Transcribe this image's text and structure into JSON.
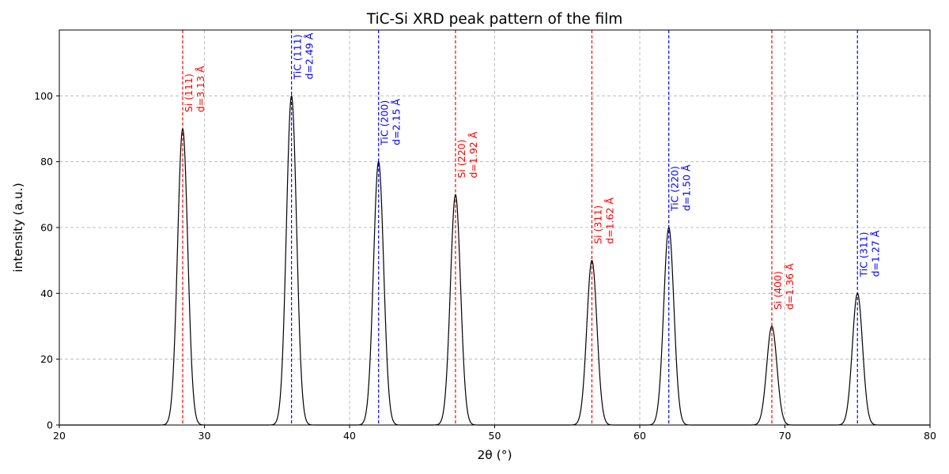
{
  "chart_data": {
    "type": "line",
    "title": "TiC-Si XRD peak pattern of the film",
    "xlabel": "2θ (°)",
    "ylabel": "intensity (a.u.)",
    "xlim": [
      20,
      80
    ],
    "ylim": [
      0,
      120
    ],
    "xticks": [
      20,
      30,
      40,
      50,
      60,
      70,
      80
    ],
    "yticks": [
      0,
      20,
      40,
      60,
      80,
      100
    ],
    "grid": true,
    "peak_width_sigma": 0.35,
    "line_color": "#000000",
    "peaks": [
      {
        "phase": "Si",
        "label": "Si (111)",
        "d_label": "d=3.13 Å",
        "x": 28.5,
        "intensity": 90,
        "color": "#ff0000"
      },
      {
        "phase": "TiC",
        "label": "TiC (111)",
        "d_label": "d=2.49 Å",
        "x": 36.0,
        "intensity": 100,
        "color": "#0000ff"
      },
      {
        "phase": "TiC",
        "label": "TiC (200)",
        "d_label": "d=2.15 Å",
        "x": 42.0,
        "intensity": 80,
        "color": "#0000ff"
      },
      {
        "phase": "Si",
        "label": "Si (220)",
        "d_label": "d=1.92 Å",
        "x": 47.3,
        "intensity": 70,
        "color": "#ff0000"
      },
      {
        "phase": "Si",
        "label": "Si (311)",
        "d_label": "d=1.62 Å",
        "x": 56.7,
        "intensity": 50,
        "color": "#ff0000"
      },
      {
        "phase": "TiC",
        "label": "TiC (220)",
        "d_label": "d=1.50 Å",
        "x": 62.0,
        "intensity": 60,
        "color": "#0000ff"
      },
      {
        "phase": "Si",
        "label": "Si (400)",
        "d_label": "d=1.36 Å",
        "x": 69.1,
        "intensity": 30,
        "color": "#ff0000"
      },
      {
        "phase": "TiC",
        "label": "TiC (311)",
        "d_label": "d=1.27 Å",
        "x": 75.0,
        "intensity": 40,
        "color": "#0000ff"
      }
    ]
  }
}
